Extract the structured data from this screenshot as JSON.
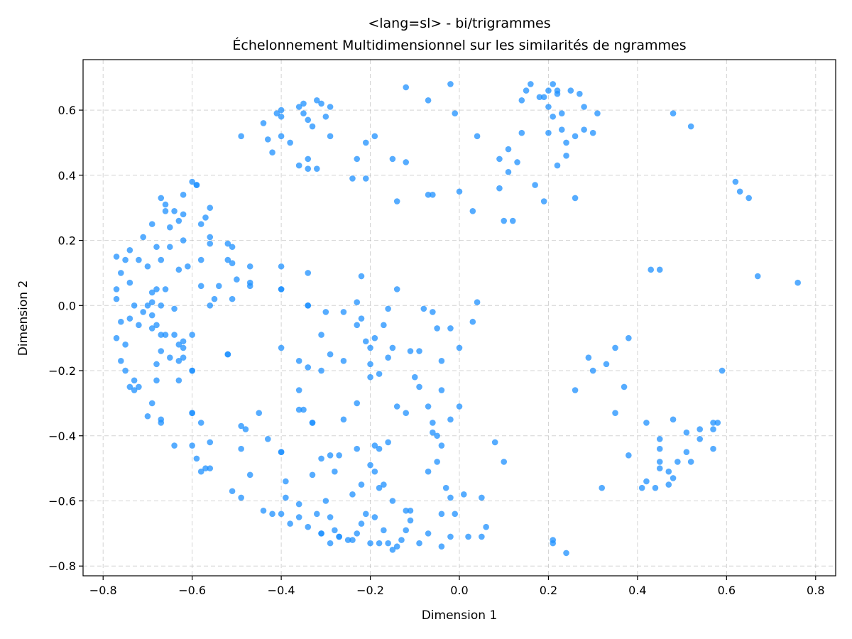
{
  "chart_data": {
    "type": "scatter",
    "title": "<lang=sl> - bi/trigrammes",
    "subtitle": "Échelonnement Multidimensionnel sur les similarités de ngrammes",
    "xlabel": "Dimension 1",
    "ylabel": "Dimension 2",
    "xlim": [
      -0.845,
      0.845
    ],
    "ylim": [
      -0.83,
      0.755
    ],
    "xticks": [
      -0.8,
      -0.6,
      -0.4,
      -0.2,
      0.0,
      0.2,
      0.4,
      0.6,
      0.8
    ],
    "yticks": [
      -0.8,
      -0.6,
      -0.4,
      -0.2,
      0.0,
      0.2,
      0.4,
      0.6
    ],
    "xtick_labels": [
      "−0.8",
      "−0.6",
      "−0.4",
      "−0.2",
      "0.0",
      "0.2",
      "0.4",
      "0.6",
      "0.8"
    ],
    "ytick_labels": [
      "−0.8",
      "−0.6",
      "−0.4",
      "−0.2",
      "0.0",
      "0.2",
      "0.4",
      "0.6"
    ],
    "grid": true,
    "marker_color": "#1e90ff",
    "points": [
      [
        -0.77,
        0.15
      ],
      [
        -0.75,
        0.14
      ],
      [
        -0.74,
        0.17
      ],
      [
        -0.76,
        0.1
      ],
      [
        -0.74,
        0.07
      ],
      [
        -0.77,
        0.05
      ],
      [
        -0.77,
        0.02
      ],
      [
        -0.76,
        -0.05
      ],
      [
        -0.74,
        -0.04
      ],
      [
        -0.73,
        0.0
      ],
      [
        -0.72,
        0.14
      ],
      [
        -0.71,
        0.21
      ],
      [
        -0.7,
        0.12
      ],
      [
        -0.69,
        0.25
      ],
      [
        -0.68,
        0.18
      ],
      [
        -0.67,
        0.33
      ],
      [
        -0.66,
        0.29
      ],
      [
        -0.66,
        0.31
      ],
      [
        -0.65,
        0.24
      ],
      [
        -0.64,
        0.29
      ],
      [
        -0.62,
        0.34
      ],
      [
        -0.62,
        0.28
      ],
      [
        -0.63,
        0.26
      ],
      [
        -0.62,
        0.2
      ],
      [
        -0.6,
        0.38
      ],
      [
        -0.59,
        0.37
      ],
      [
        -0.58,
        0.25
      ],
      [
        -0.57,
        0.27
      ],
      [
        -0.56,
        0.3
      ],
      [
        -0.56,
        0.21
      ],
      [
        -0.56,
        0.19
      ],
      [
        -0.65,
        0.18
      ],
      [
        -0.67,
        0.14
      ],
      [
        -0.63,
        0.11
      ],
      [
        -0.61,
        0.12
      ],
      [
        -0.58,
        0.14
      ],
      [
        -0.58,
        0.06
      ],
      [
        -0.54,
        0.06
      ],
      [
        -0.52,
        0.14
      ],
      [
        -0.52,
        0.19
      ],
      [
        -0.51,
        0.18
      ],
      [
        -0.51,
        0.13
      ],
      [
        -0.5,
        0.08
      ],
      [
        -0.47,
        0.12
      ],
      [
        -0.47,
        0.06
      ],
      [
        -0.51,
        0.02
      ],
      [
        -0.55,
        0.02
      ],
      [
        -0.56,
        0.0
      ],
      [
        -0.66,
        0.05
      ],
      [
        -0.68,
        0.05
      ],
      [
        -0.69,
        0.04
      ],
      [
        -0.7,
        0.0
      ],
      [
        -0.71,
        -0.02
      ],
      [
        -0.69,
        -0.03
      ],
      [
        -0.67,
        0.0
      ],
      [
        -0.64,
        -0.01
      ],
      [
        -0.69,
        0.01
      ],
      [
        -0.72,
        -0.06
      ],
      [
        -0.69,
        -0.07
      ],
      [
        -0.68,
        -0.06
      ],
      [
        -0.77,
        -0.1
      ],
      [
        -0.75,
        -0.12
      ],
      [
        -0.67,
        -0.09
      ],
      [
        -0.66,
        -0.09
      ],
      [
        -0.64,
        -0.09
      ],
      [
        -0.62,
        -0.11
      ],
      [
        -0.62,
        -0.13
      ],
      [
        -0.6,
        -0.09
      ],
      [
        -0.63,
        -0.12
      ],
      [
        -0.65,
        -0.16
      ],
      [
        -0.67,
        -0.14
      ],
      [
        -0.68,
        -0.18
      ],
      [
        -0.63,
        -0.17
      ],
      [
        -0.62,
        -0.16
      ],
      [
        -0.6,
        -0.2
      ],
      [
        -0.6,
        -0.2
      ],
      [
        -0.52,
        -0.15
      ],
      [
        -0.52,
        -0.15
      ],
      [
        -0.76,
        -0.17
      ],
      [
        -0.75,
        -0.2
      ],
      [
        -0.73,
        -0.23
      ],
      [
        -0.72,
        -0.25
      ],
      [
        -0.74,
        -0.25
      ],
      [
        -0.73,
        -0.26
      ],
      [
        -0.68,
        -0.23
      ],
      [
        -0.63,
        -0.23
      ],
      [
        -0.69,
        -0.3
      ],
      [
        -0.67,
        -0.36
      ],
      [
        -0.67,
        -0.35
      ],
      [
        -0.7,
        -0.34
      ],
      [
        -0.6,
        -0.33
      ],
      [
        -0.6,
        -0.33
      ],
      [
        -0.58,
        -0.36
      ],
      [
        -0.56,
        -0.42
      ],
      [
        -0.64,
        -0.43
      ],
      [
        -0.6,
        -0.43
      ],
      [
        -0.59,
        -0.47
      ],
      [
        -0.58,
        -0.51
      ],
      [
        -0.57,
        -0.5
      ],
      [
        -0.56,
        -0.5
      ],
      [
        -0.51,
        -0.57
      ],
      [
        -0.49,
        -0.59
      ],
      [
        -0.48,
        -0.38
      ],
      [
        -0.49,
        -0.37
      ],
      [
        -0.47,
        -0.52
      ],
      [
        -0.49,
        -0.44
      ],
      [
        -0.45,
        -0.33
      ],
      [
        -0.43,
        -0.41
      ],
      [
        -0.4,
        -0.45
      ],
      [
        -0.4,
        -0.45
      ],
      [
        -0.39,
        -0.54
      ],
      [
        -0.39,
        -0.59
      ],
      [
        -0.44,
        -0.63
      ],
      [
        -0.42,
        -0.64
      ],
      [
        -0.4,
        -0.64
      ],
      [
        -0.38,
        -0.67
      ],
      [
        -0.36,
        -0.61
      ],
      [
        -0.36,
        -0.65
      ],
      [
        -0.34,
        -0.68
      ],
      [
        -0.32,
        -0.64
      ],
      [
        -0.3,
        -0.6
      ],
      [
        -0.29,
        -0.65
      ],
      [
        -0.28,
        -0.69
      ],
      [
        -0.31,
        -0.7
      ],
      [
        -0.29,
        -0.73
      ],
      [
        -0.27,
        -0.71
      ],
      [
        -0.25,
        -0.72
      ],
      [
        -0.24,
        -0.72
      ],
      [
        -0.23,
        -0.7
      ],
      [
        -0.22,
        -0.67
      ],
      [
        -0.21,
        -0.64
      ],
      [
        -0.19,
        -0.65
      ],
      [
        -0.2,
        -0.73
      ],
      [
        -0.18,
        -0.73
      ],
      [
        -0.17,
        -0.69
      ],
      [
        -0.16,
        -0.73
      ],
      [
        -0.15,
        -0.75
      ],
      [
        -0.14,
        -0.74
      ],
      [
        -0.13,
        -0.72
      ],
      [
        -0.12,
        -0.69
      ],
      [
        -0.11,
        -0.66
      ],
      [
        -0.09,
        -0.73
      ],
      [
        -0.07,
        -0.7
      ],
      [
        -0.04,
        -0.74
      ],
      [
        -0.04,
        -0.64
      ],
      [
        -0.01,
        -0.64
      ],
      [
        -0.02,
        -0.59
      ],
      [
        -0.03,
        -0.56
      ],
      [
        -0.02,
        -0.71
      ],
      [
        0.02,
        -0.71
      ],
      [
        0.05,
        -0.71
      ],
      [
        0.06,
        -0.68
      ],
      [
        0.05,
        -0.59
      ],
      [
        0.01,
        -0.58
      ],
      [
        -0.05,
        -0.48
      ],
      [
        -0.07,
        -0.51
      ],
      [
        -0.12,
        -0.63
      ],
      [
        -0.15,
        -0.6
      ],
      [
        -0.17,
        -0.55
      ],
      [
        -0.18,
        -0.56
      ],
      [
        -0.19,
        -0.51
      ],
      [
        -0.2,
        -0.49
      ],
      [
        -0.18,
        -0.44
      ],
      [
        -0.16,
        -0.42
      ],
      [
        -0.19,
        -0.43
      ],
      [
        -0.22,
        -0.55
      ],
      [
        -0.24,
        -0.58
      ],
      [
        -0.23,
        -0.44
      ],
      [
        -0.27,
        -0.46
      ],
      [
        -0.29,
        -0.46
      ],
      [
        -0.28,
        -0.51
      ],
      [
        -0.31,
        -0.47
      ],
      [
        -0.33,
        -0.52
      ],
      [
        -0.33,
        -0.36
      ],
      [
        -0.33,
        -0.36
      ],
      [
        -0.35,
        -0.32
      ],
      [
        -0.36,
        -0.32
      ],
      [
        -0.36,
        -0.26
      ],
      [
        -0.34,
        -0.19
      ],
      [
        -0.36,
        -0.17
      ],
      [
        -0.4,
        -0.13
      ],
      [
        -0.31,
        -0.09
      ],
      [
        -0.29,
        -0.15
      ],
      [
        -0.31,
        -0.2
      ],
      [
        -0.26,
        -0.17
      ],
      [
        -0.23,
        -0.3
      ],
      [
        -0.26,
        -0.35
      ],
      [
        -0.2,
        -0.22
      ],
      [
        -0.2,
        -0.18
      ],
      [
        -0.18,
        -0.21
      ],
      [
        -0.16,
        -0.16
      ],
      [
        -0.15,
        -0.13
      ],
      [
        -0.11,
        -0.14
      ],
      [
        -0.1,
        -0.22
      ],
      [
        -0.09,
        -0.25
      ],
      [
        -0.12,
        -0.33
      ],
      [
        -0.14,
        -0.31
      ],
      [
        -0.09,
        -0.14
      ],
      [
        -0.07,
        -0.31
      ],
      [
        -0.06,
        -0.36
      ],
      [
        -0.06,
        -0.39
      ],
      [
        -0.04,
        -0.43
      ],
      [
        -0.04,
        -0.26
      ],
      [
        -0.04,
        -0.17
      ],
      [
        -0.02,
        -0.35
      ],
      [
        0.0,
        -0.31
      ],
      [
        0.0,
        -0.13
      ],
      [
        -0.05,
        -0.07
      ],
      [
        -0.02,
        -0.07
      ],
      [
        0.03,
        -0.05
      ],
      [
        0.04,
        0.01
      ],
      [
        -0.06,
        -0.02
      ],
      [
        -0.08,
        -0.01
      ],
      [
        -0.16,
        -0.01
      ],
      [
        -0.14,
        0.05
      ],
      [
        -0.17,
        -0.06
      ],
      [
        -0.19,
        -0.1
      ],
      [
        -0.2,
        -0.13
      ],
      [
        -0.21,
        -0.11
      ],
      [
        -0.23,
        -0.06
      ],
      [
        -0.22,
        -0.04
      ],
      [
        -0.23,
        0.01
      ],
      [
        -0.26,
        -0.02
      ],
      [
        -0.3,
        -0.02
      ],
      [
        -0.34,
        0.0
      ],
      [
        -0.34,
        0.0
      ],
      [
        -0.4,
        0.05
      ],
      [
        -0.4,
        0.05
      ],
      [
        -0.4,
        0.12
      ],
      [
        -0.34,
        0.1
      ],
      [
        -0.22,
        0.09
      ],
      [
        -0.47,
        0.07
      ],
      [
        -0.59,
        0.37
      ],
      [
        -0.42,
        0.47
      ],
      [
        -0.43,
        0.51
      ],
      [
        -0.44,
        0.56
      ],
      [
        -0.4,
        0.52
      ],
      [
        -0.38,
        0.5
      ],
      [
        -0.36,
        0.43
      ],
      [
        -0.34,
        0.45
      ],
      [
        -0.34,
        0.42
      ],
      [
        -0.32,
        0.42
      ],
      [
        -0.36,
        0.61
      ],
      [
        -0.35,
        0.62
      ],
      [
        -0.35,
        0.59
      ],
      [
        -0.34,
        0.57
      ],
      [
        -0.33,
        0.55
      ],
      [
        -0.32,
        0.63
      ],
      [
        -0.31,
        0.62
      ],
      [
        -0.3,
        0.58
      ],
      [
        -0.29,
        0.61
      ],
      [
        -0.4,
        0.58
      ],
      [
        -0.4,
        0.6
      ],
      [
        -0.41,
        0.59
      ],
      [
        -0.49,
        0.52
      ],
      [
        -0.29,
        0.52
      ],
      [
        -0.24,
        0.39
      ],
      [
        -0.23,
        0.45
      ],
      [
        -0.21,
        0.5
      ],
      [
        -0.19,
        0.52
      ],
      [
        -0.21,
        0.39
      ],
      [
        -0.15,
        0.45
      ],
      [
        -0.12,
        0.67
      ],
      [
        -0.12,
        0.44
      ],
      [
        -0.14,
        0.32
      ],
      [
        -0.07,
        0.63
      ],
      [
        -0.07,
        0.34
      ],
      [
        -0.06,
        0.34
      ],
      [
        -0.02,
        0.68
      ],
      [
        -0.01,
        0.59
      ],
      [
        0.0,
        0.35
      ],
      [
        0.03,
        0.29
      ],
      [
        0.04,
        0.52
      ],
      [
        0.09,
        0.45
      ],
      [
        0.09,
        0.36
      ],
      [
        0.1,
        0.26
      ],
      [
        0.11,
        0.41
      ],
      [
        0.11,
        0.48
      ],
      [
        0.12,
        0.26
      ],
      [
        0.13,
        0.44
      ],
      [
        0.14,
        0.53
      ],
      [
        0.14,
        0.63
      ],
      [
        0.15,
        0.66
      ],
      [
        0.16,
        0.68
      ],
      [
        0.17,
        0.37
      ],
      [
        0.19,
        0.32
      ],
      [
        0.18,
        0.64
      ],
      [
        0.19,
        0.64
      ],
      [
        0.2,
        0.66
      ],
      [
        0.2,
        0.53
      ],
      [
        0.2,
        0.61
      ],
      [
        0.21,
        0.58
      ],
      [
        0.21,
        0.68
      ],
      [
        0.22,
        0.66
      ],
      [
        0.22,
        0.43
      ],
      [
        0.23,
        0.54
      ],
      [
        0.23,
        0.59
      ],
      [
        0.24,
        0.46
      ],
      [
        0.24,
        0.5
      ],
      [
        0.25,
        0.66
      ],
      [
        0.26,
        0.52
      ],
      [
        0.26,
        0.33
      ],
      [
        0.27,
        0.65
      ],
      [
        0.28,
        0.61
      ],
      [
        0.28,
        0.54
      ],
      [
        0.3,
        0.53
      ],
      [
        0.31,
        0.59
      ],
      [
        0.22,
        0.65
      ],
      [
        0.48,
        0.59
      ],
      [
        0.52,
        0.55
      ],
      [
        0.62,
        0.38
      ],
      [
        0.63,
        0.35
      ],
      [
        0.65,
        0.33
      ],
      [
        0.67,
        0.09
      ],
      [
        0.76,
        0.07
      ],
      [
        0.43,
        0.11
      ],
      [
        0.45,
        0.11
      ],
      [
        0.38,
        -0.1
      ],
      [
        0.35,
        -0.13
      ],
      [
        0.33,
        -0.18
      ],
      [
        0.29,
        -0.16
      ],
      [
        0.3,
        -0.2
      ],
      [
        0.26,
        -0.26
      ],
      [
        0.37,
        -0.25
      ],
      [
        0.35,
        -0.33
      ],
      [
        0.32,
        -0.56
      ],
      [
        0.38,
        -0.46
      ],
      [
        0.41,
        -0.56
      ],
      [
        0.42,
        -0.36
      ],
      [
        0.42,
        -0.54
      ],
      [
        0.44,
        -0.56
      ],
      [
        0.45,
        -0.41
      ],
      [
        0.45,
        -0.44
      ],
      [
        0.45,
        -0.48
      ],
      [
        0.45,
        -0.5
      ],
      [
        0.47,
        -0.51
      ],
      [
        0.47,
        -0.55
      ],
      [
        0.48,
        -0.53
      ],
      [
        0.48,
        -0.35
      ],
      [
        0.49,
        -0.48
      ],
      [
        0.51,
        -0.45
      ],
      [
        0.51,
        -0.39
      ],
      [
        0.52,
        -0.48
      ],
      [
        0.54,
        -0.41
      ],
      [
        0.54,
        -0.38
      ],
      [
        0.57,
        -0.38
      ],
      [
        0.57,
        -0.44
      ],
      [
        0.57,
        -0.36
      ],
      [
        0.58,
        -0.36
      ],
      [
        0.59,
        -0.2
      ],
      [
        0.21,
        -0.72
      ],
      [
        0.21,
        -0.73
      ],
      [
        0.24,
        -0.76
      ],
      [
        0.08,
        -0.42
      ],
      [
        0.1,
        -0.48
      ],
      [
        -0.05,
        -0.4
      ],
      [
        -0.11,
        -0.63
      ],
      [
        -0.27,
        -0.71
      ],
      [
        -0.31,
        -0.7
      ]
    ]
  }
}
